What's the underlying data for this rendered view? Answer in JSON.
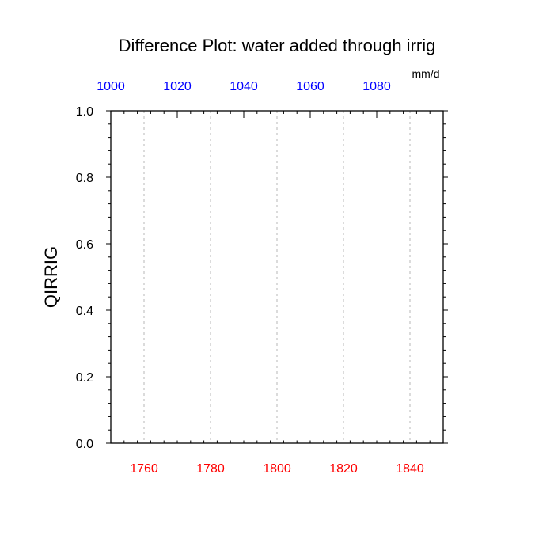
{
  "chart_data": {
    "type": "line",
    "title": "Difference Plot: water added through irrig",
    "ylabel": "QIRRIG",
    "top_axis_units": "mm/d",
    "series": [],
    "grid": "vertical dashed at bottom-axis major ticks",
    "y_axis": {
      "range": [
        0.0,
        1.0
      ],
      "major_ticks": [
        0.0,
        0.2,
        0.4,
        0.6,
        0.8,
        1.0
      ],
      "tick_labels": [
        "0.0",
        "0.2",
        "0.4",
        "0.6",
        "0.8",
        "1.0"
      ],
      "minor_step": 0.04,
      "color": "#000000"
    },
    "x_bottom_axis": {
      "range": [
        1750,
        1850
      ],
      "major_ticks": [
        1760,
        1780,
        1800,
        1820,
        1840
      ],
      "tick_labels": [
        "1760",
        "1780",
        "1800",
        "1820",
        "1840"
      ],
      "minor_step": 4,
      "color": "#ff0000"
    },
    "x_top_axis": {
      "range": [
        1000,
        1100
      ],
      "major_ticks": [
        1000,
        1020,
        1040,
        1060,
        1080
      ],
      "tick_labels": [
        "1000",
        "1020",
        "1040",
        "1060",
        "1080"
      ],
      "minor_step": 4,
      "color": "#0000ff"
    },
    "colors": {
      "frame": "#000000",
      "grid": "#b0b0b0"
    }
  }
}
